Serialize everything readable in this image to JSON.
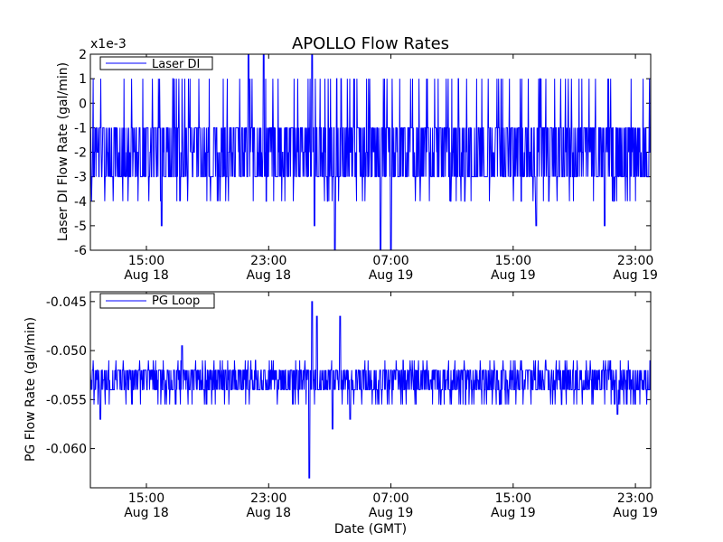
{
  "title": "APOLLO Flow Rates",
  "chart_data": [
    {
      "type": "line",
      "title": "APOLLO Flow Rates",
      "ylabel": "Laser DI Flow Rate (gal/min)",
      "xlabel": "",
      "scale_label": "x1e-3",
      "ylim": [
        -6,
        2
      ],
      "yticks": [
        2,
        1,
        0,
        -1,
        -2,
        -3,
        -4,
        -5,
        -6
      ],
      "ytick_labels": [
        "2",
        "1",
        "0",
        "-1",
        "-2",
        "-3",
        "-4",
        "-5",
        "-6"
      ],
      "xlim": [
        "2018-08-18T11:20",
        "2018-08-20T00:00"
      ],
      "xticks": [
        {
          "time": "2018-08-18T15:00",
          "line1": "15:00",
          "line2": "Aug 18"
        },
        {
          "time": "2018-08-18T23:00",
          "line1": "23:00",
          "line2": "Aug 18"
        },
        {
          "time": "2018-08-19T07:00",
          "line1": "07:00",
          "line2": "Aug 19"
        },
        {
          "time": "2018-08-19T15:00",
          "line1": "15:00",
          "line2": "Aug 19"
        },
        {
          "time": "2018-08-19T23:00",
          "line1": "23:00",
          "line2": "Aug 19"
        }
      ],
      "legend": {
        "position": "top-left",
        "entries": [
          "Laser DI"
        ]
      },
      "grid": false,
      "series": [
        {
          "name": "Laser DI",
          "color": "#0000ff",
          "baseline": [
            -1,
            -3
          ],
          "typical_range": [
            -4,
            1
          ],
          "spikes": [
            {
              "time": "2018-08-18T21:40",
              "value": 2
            },
            {
              "time": "2018-08-18T22:40",
              "value": 2
            },
            {
              "time": "2018-08-19T01:50",
              "value": 2
            },
            {
              "time": "2018-08-19T03:20",
              "value": -6
            },
            {
              "time": "2018-08-19T06:20",
              "value": -6
            },
            {
              "time": "2018-08-19T07:00",
              "value": -6
            },
            {
              "time": "2018-08-18T16:00",
              "value": -5
            },
            {
              "time": "2018-08-19T02:00",
              "value": -5
            },
            {
              "time": "2018-08-19T16:30",
              "value": -5
            },
            {
              "time": "2018-08-19T21:00",
              "value": -5
            }
          ]
        }
      ]
    },
    {
      "type": "line",
      "title": "",
      "ylabel": "PG Flow Rate (gal/min)",
      "xlabel": "Date (GMT)",
      "ylim": [
        -0.064,
        -0.044
      ],
      "yticks": [
        -0.045,
        -0.05,
        -0.055,
        -0.06
      ],
      "ytick_labels": [
        "-0.045",
        "-0.050",
        "-0.055",
        "-0.060"
      ],
      "xlim": [
        "2018-08-18T11:20",
        "2018-08-20T00:00"
      ],
      "xticks": [
        {
          "time": "2018-08-18T15:00",
          "line1": "15:00",
          "line2": "Aug 18"
        },
        {
          "time": "2018-08-18T23:00",
          "line1": "23:00",
          "line2": "Aug 18"
        },
        {
          "time": "2018-08-19T07:00",
          "line1": "07:00",
          "line2": "Aug 19"
        },
        {
          "time": "2018-08-19T15:00",
          "line1": "15:00",
          "line2": "Aug 19"
        },
        {
          "time": "2018-08-19T23:00",
          "line1": "23:00",
          "line2": "Aug 19"
        }
      ],
      "legend": {
        "position": "top-left",
        "entries": [
          "PG Loop"
        ]
      },
      "grid": false,
      "series": [
        {
          "name": "PG Loop",
          "color": "#0000ff",
          "baseline": [
            -0.052,
            -0.054
          ],
          "typical_range": [
            -0.0555,
            -0.051
          ],
          "spikes": [
            {
              "time": "2018-08-19T01:40",
              "value": -0.063
            },
            {
              "time": "2018-08-19T01:50",
              "value": -0.045
            },
            {
              "time": "2018-08-19T02:10",
              "value": -0.0465
            },
            {
              "time": "2018-08-19T03:40",
              "value": -0.0465
            },
            {
              "time": "2018-08-19T03:10",
              "value": -0.058
            },
            {
              "time": "2018-08-19T04:20",
              "value": -0.057
            },
            {
              "time": "2018-08-18T12:00",
              "value": -0.057
            },
            {
              "time": "2018-08-19T21:50",
              "value": -0.0565
            },
            {
              "time": "2018-08-18T17:20",
              "value": -0.0495
            }
          ]
        }
      ]
    }
  ]
}
